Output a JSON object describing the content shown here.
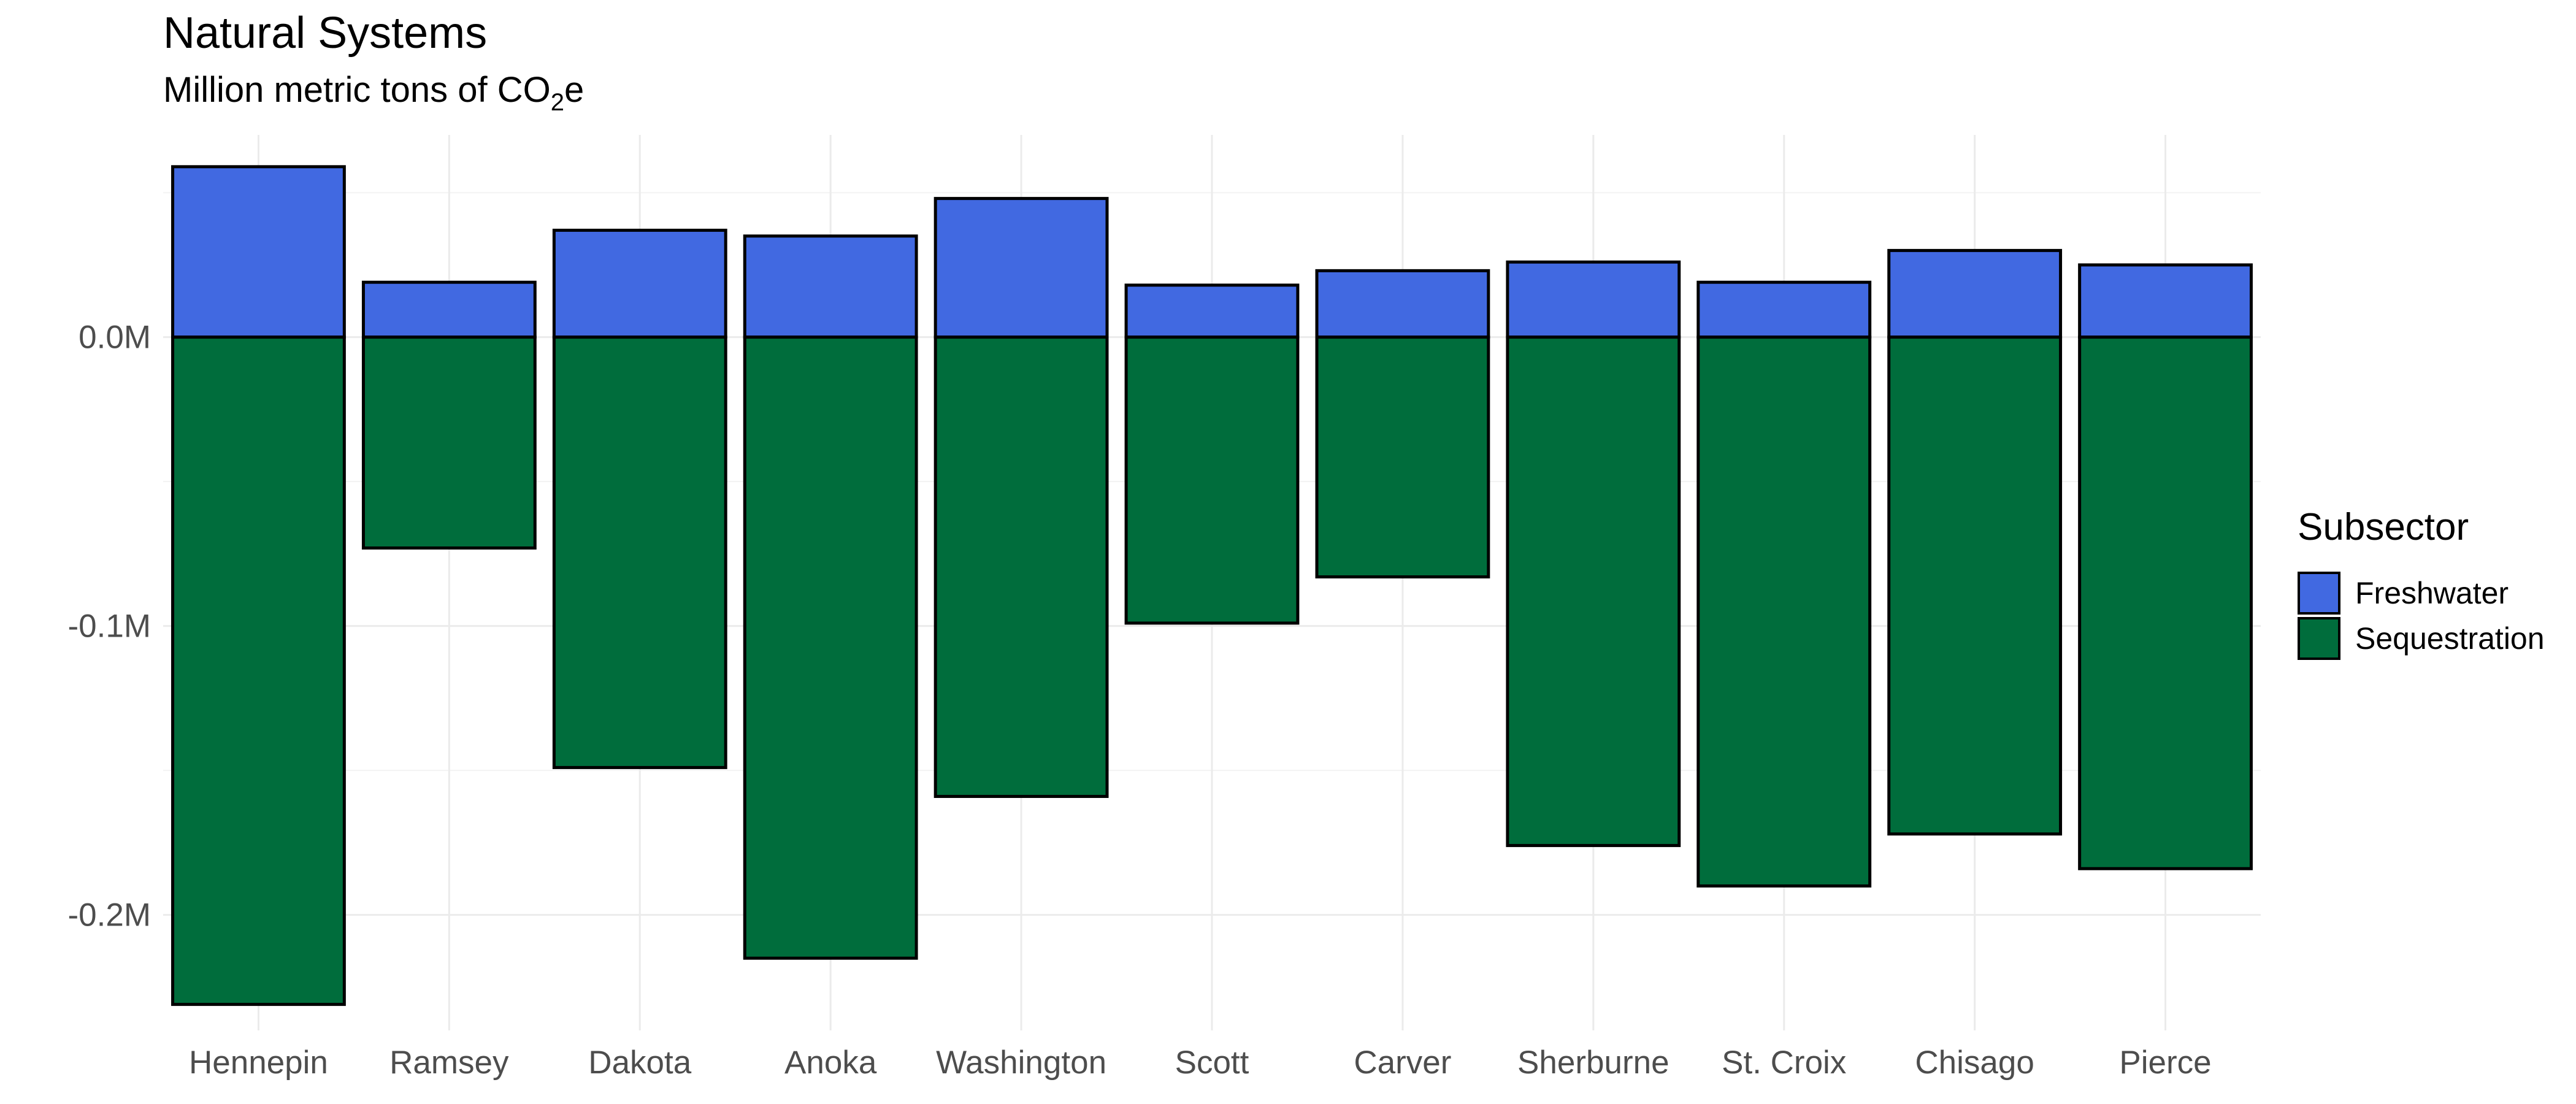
{
  "chart_data": {
    "type": "bar",
    "stacked": true,
    "title": "Natural Systems",
    "subtitle": {
      "prefix": "Million metric tons of CO",
      "subscript": "2",
      "suffix": "e"
    },
    "xlabel": "",
    "ylabel": "",
    "categories": [
      "Hennepin",
      "Ramsey",
      "Dakota",
      "Anoka",
      "Washington",
      "Scott",
      "Carver",
      "Sherburne",
      "St. Croix",
      "Chisago",
      "Pierce"
    ],
    "series": [
      {
        "name": "Freshwater",
        "color": "#4169e1",
        "values": [
          0.059,
          0.019,
          0.037,
          0.035,
          0.048,
          0.018,
          0.023,
          0.026,
          0.019,
          0.03,
          0.025
        ]
      },
      {
        "name": "Sequestration",
        "color": "#006d3c",
        "values": [
          -0.231,
          -0.073,
          -0.149,
          -0.215,
          -0.159,
          -0.099,
          -0.083,
          -0.176,
          -0.19,
          -0.172,
          -0.184
        ]
      }
    ],
    "yticks": [
      {
        "value": 0.0,
        "label": "0.0M"
      },
      {
        "value": -0.1,
        "label": "-0.1M"
      },
      {
        "value": -0.2,
        "label": "-0.2M"
      }
    ],
    "ylim": [
      -0.24,
      0.07
    ],
    "grid": true,
    "legend": {
      "title": "Subsector",
      "position": "right"
    }
  }
}
